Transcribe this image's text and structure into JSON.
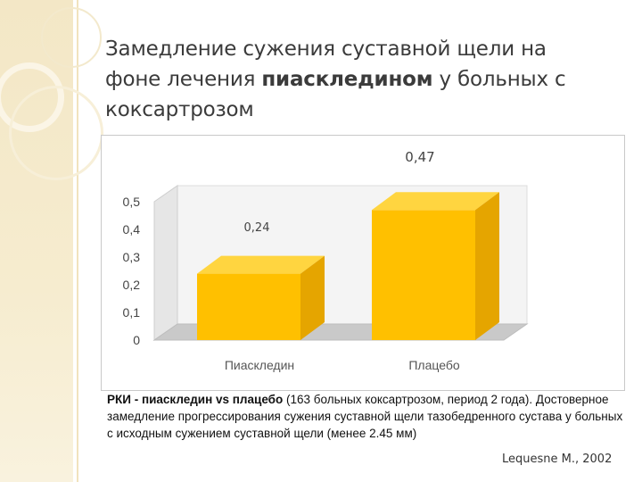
{
  "slide": {
    "title_part1": "Замедление сужения суставной щели на фоне лечения ",
    "title_bold": "пиаскледином",
    "title_part2": " у больных с коксартрозом",
    "caption_bold": "РКИ - пиаскледин vs плацебо",
    "caption_rest": " (163 больных коксартрозом, период 2 года). Достоверное замедление прогрессирования сужения суставной щели тазобедренного сустава у больных с исходным сужением суставной щели (менее 2.45 мм)",
    "citation": "Lequesne M., 2002"
  },
  "chart_data": {
    "type": "bar",
    "categories": [
      "Пиаскледин",
      "Плацебо"
    ],
    "values": [
      0.24,
      0.47
    ],
    "data_labels": [
      "0,24",
      "0,47"
    ],
    "yticks": [
      "0",
      "0,1",
      "0,2",
      "0,3",
      "0,4",
      "0,5"
    ],
    "ylim": [
      0,
      0.5
    ],
    "title": "",
    "xlabel": "",
    "ylabel": "",
    "three_d": true,
    "grid": false,
    "bar_color": "#ffc000",
    "bar_top_color": "#ffd540",
    "bar_side_color": "#e5a500"
  }
}
